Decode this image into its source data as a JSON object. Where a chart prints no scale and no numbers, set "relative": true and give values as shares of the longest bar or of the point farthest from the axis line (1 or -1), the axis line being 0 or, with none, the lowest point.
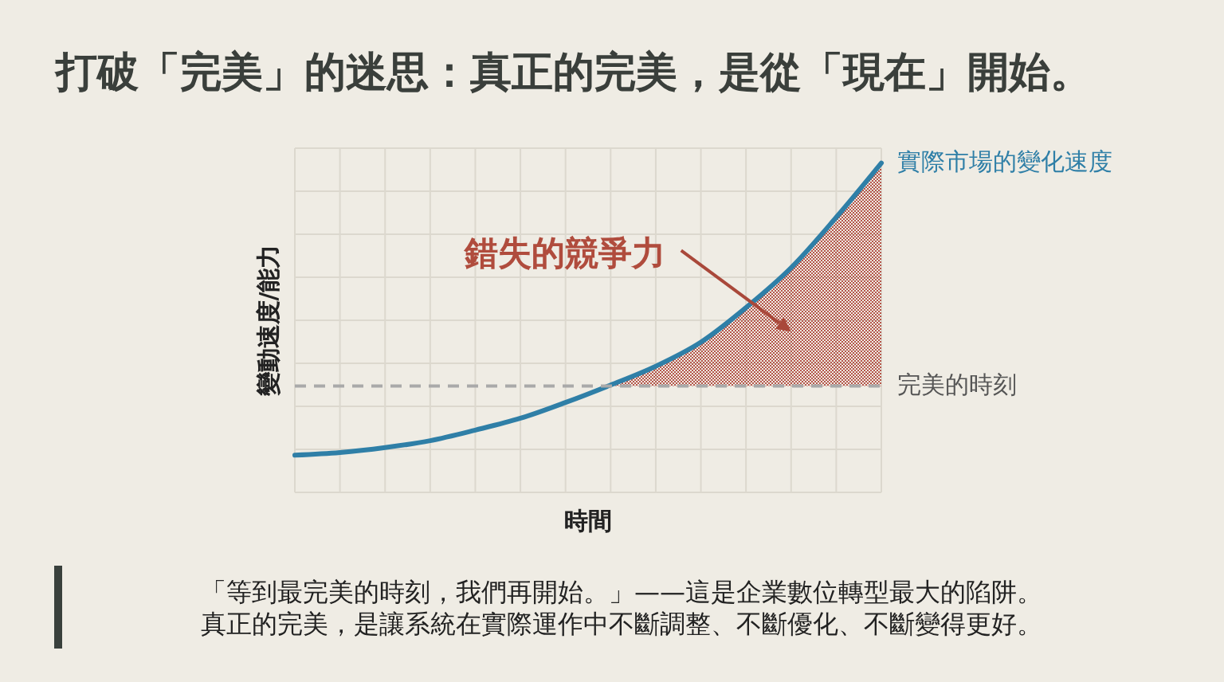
{
  "chart_data": {
    "type": "line",
    "title": "打破「完美」的迷思：真正的完美，是從「現在」開始。",
    "xlabel": "時間",
    "ylabel": "變動速度/能力",
    "relative": true,
    "grid": true,
    "categories": [
      null,
      null,
      null,
      null,
      null,
      null,
      null,
      null,
      null,
      null,
      null,
      null,
      null,
      null
    ],
    "series": [
      {
        "name": "實際市場的變化速度",
        "color": "#2f7fa7",
        "values": [
          0.113,
          0.121,
          0.136,
          0.157,
          0.189,
          0.225,
          0.273,
          0.326,
          0.383,
          0.456,
          0.561,
          0.682,
          0.835,
          1
        ],
        "lower": [
          null,
          null,
          null,
          null,
          null,
          null,
          null,
          0.323,
          0.323,
          0.323,
          0.323,
          0.323,
          0.323,
          0.323
        ],
        "upper": [
          null,
          null,
          null,
          null,
          null,
          null,
          null,
          0.326,
          0.383,
          0.456,
          0.561,
          0.682,
          0.835,
          1
        ]
      }
    ],
    "ref_lines": [
      {
        "axis": "y",
        "value": 0.323,
        "label": "完美的時刻",
        "color": "#a9a9a9",
        "line_style": "dashed"
      }
    ],
    "annotations": [
      "錯失的競爭力",
      "「等到最完美的時刻，我們再開始。」——這是企業數位轉型最大的陷阱。",
      "真正的完美，是讓系統在實際運作中不斷調整、不斷優化、不斷變得更好。"
    ]
  }
}
